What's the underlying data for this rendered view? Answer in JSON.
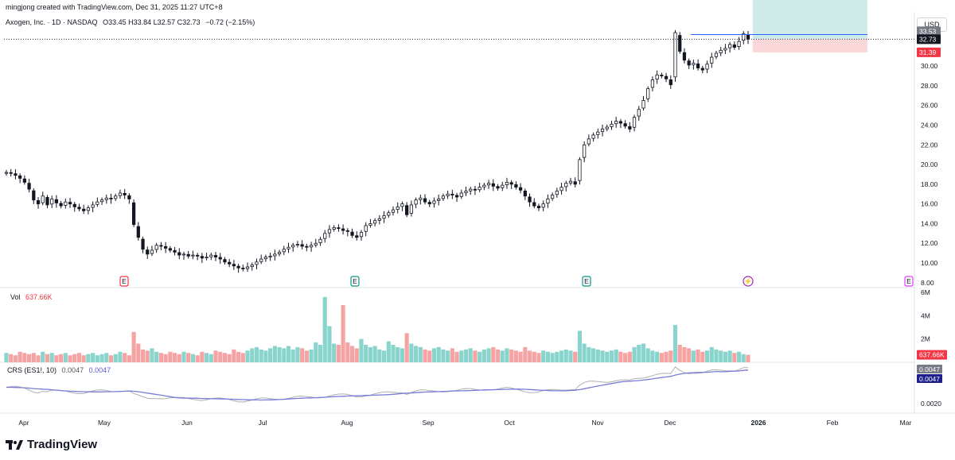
{
  "header": {
    "credit": "mingjong created with TradingView.com, Dec 31, 2025 11:27 UTC+8"
  },
  "symbol_line": {
    "name": "Axogen, Inc. · 1D · NASDAQ",
    "ohlc": "O33.45  H33.84  L32.57  C32.73",
    "change": "−0.72 (−2.15%)"
  },
  "currency": "USD",
  "volume_legend": {
    "label": "Vol",
    "value": "637.66K"
  },
  "crs_legend": {
    "label": "CRS (ES1!, 10)",
    "value1": "0.0047",
    "value2": "0.0047"
  },
  "brand": {
    "name": "TradingView"
  },
  "colors": {
    "up": "#26a69a",
    "down": "#ef5350",
    "vol_up": "#89d4cc",
    "vol_down": "#f5a3a3",
    "crs_line": "#7b7bd9",
    "crs_ref": "#b0b0b0"
  },
  "chart_data": [
    {
      "type": "candlestick",
      "title": "Axogen, Inc. · 1D · NASDAQ",
      "x_tick_labels": [
        "Apr",
        "May",
        "Jun",
        "Jul",
        "Aug",
        "Sep",
        "Oct",
        "Nov",
        "Dec",
        "2026",
        "Feb",
        "Mar"
      ],
      "y_tick_labels": [
        "8.00",
        "10.00",
        "12.00",
        "14.00",
        "16.00",
        "18.00",
        "20.00",
        "22.00",
        "24.00",
        "26.00",
        "28.00",
        "30.00"
      ],
      "ylim": [
        7.5,
        35.5
      ],
      "price_badges": {
        "upper": "33.53",
        "last": "32.73",
        "lower": "31.39"
      },
      "earnings_markers": [
        {
          "date": "May",
          "label": "E",
          "status": "past-miss"
        },
        {
          "date": "Aug",
          "label": "E",
          "status": "past-beat"
        },
        {
          "date": "Oct-end",
          "label": "E",
          "status": "past-beat"
        },
        {
          "date": "Dec-end",
          "label": "⚡",
          "status": "event"
        },
        {
          "date": "Feb",
          "label": "E",
          "status": "upcoming"
        }
      ],
      "position_tool": {
        "entry": 32.73,
        "stop": 31.39,
        "target": 38.5
      },
      "closes": [
        19.2,
        19.1,
        18.9,
        18.6,
        18.2,
        17.5,
        16.4,
        16.0,
        16.8,
        15.9,
        16.5,
        16.1,
        15.8,
        16.2,
        16.0,
        15.7,
        15.5,
        15.3,
        15.6,
        15.9,
        16.2,
        16.4,
        16.6,
        16.5,
        16.8,
        17.1,
        16.9,
        16.5,
        13.9,
        12.6,
        11.4,
        10.9,
        11.3,
        11.8,
        11.7,
        11.5,
        11.3,
        11.1,
        10.8,
        10.9,
        10.7,
        10.8,
        10.7,
        10.5,
        10.6,
        10.8,
        10.6,
        10.4,
        10.1,
        9.9,
        9.7,
        9.5,
        9.4,
        9.6,
        9.8,
        10.1,
        10.4,
        10.6,
        10.7,
        10.9,
        11.1,
        11.4,
        11.6,
        11.8,
        11.9,
        11.7,
        11.6,
        11.8,
        12.0,
        12.4,
        13.0,
        13.4,
        13.6,
        13.5,
        13.3,
        13.2,
        12.8,
        12.6,
        13.1,
        13.8,
        14.0,
        14.3,
        14.5,
        14.8,
        15.1,
        15.4,
        15.7,
        16.0,
        14.9,
        15.9,
        16.4,
        16.6,
        16.2,
        16.0,
        16.3,
        16.5,
        16.8,
        17.0,
        16.9,
        16.7,
        17.1,
        17.3,
        17.5,
        17.4,
        17.7,
        17.9,
        18.1,
        17.8,
        17.6,
        17.9,
        18.2,
        18.0,
        17.7,
        17.4,
        16.8,
        16.2,
        15.8,
        15.6,
        16.0,
        16.5,
        16.9,
        17.3,
        17.7,
        18.1,
        18.3,
        18.0,
        20.5,
        22.0,
        22.6,
        23.0,
        23.3,
        23.6,
        23.8,
        24.1,
        24.4,
        24.2,
        23.9,
        23.6,
        24.8,
        25.6,
        26.5,
        27.7,
        28.6,
        29.1,
        29.0,
        28.7,
        28.1,
        33.4,
        31.5,
        30.6,
        30.1,
        30.3,
        29.8,
        29.6,
        30.2,
        30.9,
        31.3,
        31.6,
        31.8,
        32.2,
        31.9,
        32.5,
        33.3,
        32.73
      ],
      "volume_ylim": [
        0,
        6
      ],
      "volume_tick_labels": [
        "2M",
        "4M",
        "6M"
      ],
      "volume_last": "637.66K",
      "volumes": [
        0.8,
        0.7,
        0.6,
        0.9,
        0.8,
        0.7,
        0.8,
        0.6,
        0.9,
        0.7,
        0.8,
        0.6,
        0.7,
        0.8,
        0.6,
        0.7,
        0.8,
        0.6,
        0.7,
        0.8,
        0.6,
        0.7,
        0.8,
        0.6,
        0.7,
        0.9,
        0.8,
        0.6,
        2.6,
        1.6,
        1.1,
        1.0,
        1.2,
        0.9,
        0.8,
        0.7,
        0.9,
        0.8,
        0.7,
        0.9,
        0.8,
        0.7,
        0.6,
        0.9,
        0.8,
        0.7,
        1.0,
        0.9,
        0.8,
        0.7,
        1.1,
        0.9,
        0.8,
        1.0,
        1.2,
        1.3,
        1.1,
        1.0,
        1.2,
        1.4,
        1.3,
        1.2,
        1.4,
        1.1,
        1.3,
        1.2,
        1.0,
        1.1,
        1.7,
        1.5,
        5.6,
        3.1,
        1.6,
        1.5,
        4.9,
        1.7,
        1.4,
        1.2,
        2.0,
        1.5,
        1.3,
        1.4,
        1.1,
        1.0,
        1.8,
        1.5,
        1.3,
        1.2,
        2.5,
        1.6,
        1.4,
        1.3,
        1.1,
        1.0,
        1.2,
        1.3,
        1.1,
        1.0,
        1.2,
        0.9,
        1.0,
        1.1,
        1.2,
        1.0,
        0.9,
        1.1,
        1.2,
        1.3,
        1.1,
        1.0,
        1.2,
        1.1,
        1.0,
        0.9,
        1.3,
        1.0,
        0.9,
        0.8,
        1.0,
        0.9,
        0.8,
        0.9,
        1.0,
        1.1,
        1.0,
        0.9,
        2.7,
        1.6,
        1.3,
        1.2,
        1.1,
        1.0,
        0.9,
        1.0,
        1.1,
        0.9,
        0.8,
        0.9,
        1.3,
        1.5,
        1.6,
        1.2,
        1.0,
        0.9,
        0.8,
        0.9,
        1.0,
        3.2,
        1.5,
        1.3,
        1.2,
        1.0,
        1.1,
        0.9,
        1.0,
        1.3,
        1.1,
        1.0,
        0.9,
        1.0,
        0.8,
        0.9,
        0.7,
        0.64
      ],
      "crs": {
        "label": "CRS (ES1!, 10)",
        "value": 0.0047,
        "ytick": "0.0020"
      }
    }
  ]
}
